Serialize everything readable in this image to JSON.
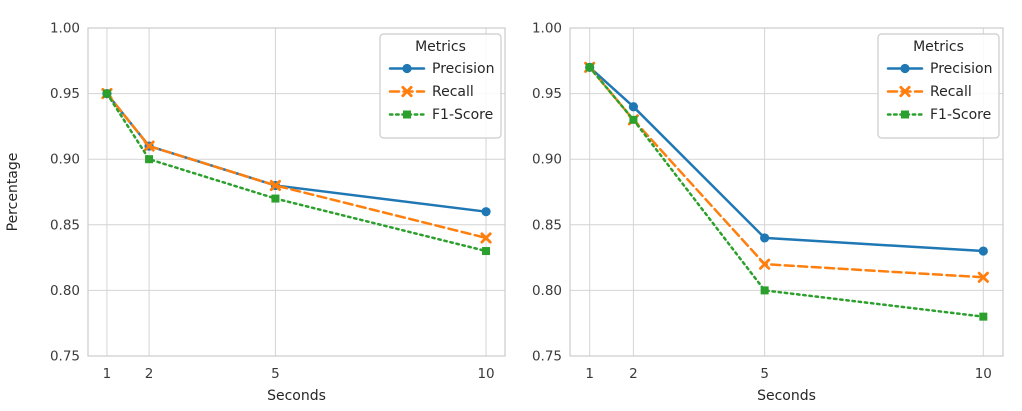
{
  "page": {
    "background": "#ffffff",
    "grid_color": "#d4d4d4",
    "spine_color": "#cccccc",
    "tick_text_color": "#3b3b3b",
    "label_text_color": "#262626"
  },
  "chart_data": [
    {
      "type": "line",
      "title": "",
      "xlabel": "Seconds",
      "ylabel": "Percentage",
      "x": [
        1,
        2,
        5,
        10
      ],
      "xticks": [
        1,
        2,
        5,
        10
      ],
      "xtick_labels": [
        "1",
        "2",
        "5",
        "10"
      ],
      "yticks": [
        0.75,
        0.8,
        0.85,
        0.9,
        0.95,
        1.0
      ],
      "ytick_labels": [
        "0.75",
        "0.80",
        "0.85",
        "0.90",
        "0.95",
        "1.00"
      ],
      "xlim": [
        0.55,
        10.45
      ],
      "ylim": [
        0.75,
        1.0
      ],
      "grid": true,
      "legend_title": "Metrics",
      "legend_position": "upper right",
      "series": [
        {
          "name": "Precision",
          "values": [
            0.95,
            0.91,
            0.88,
            0.86
          ],
          "color": "#1f77b4",
          "line": "solid",
          "marker": "circle"
        },
        {
          "name": "Recall",
          "values": [
            0.95,
            0.91,
            0.88,
            0.84
          ],
          "color": "#ff7f0e",
          "line": "dashed",
          "marker": "x"
        },
        {
          "name": "F1-Score",
          "values": [
            0.95,
            0.9,
            0.87,
            0.83
          ],
          "color": "#2ca02c",
          "line": "dotted",
          "marker": "square"
        }
      ]
    },
    {
      "type": "line",
      "title": "",
      "xlabel": "Seconds",
      "ylabel": "",
      "x": [
        1,
        2,
        5,
        10
      ],
      "xticks": [
        1,
        2,
        5,
        10
      ],
      "xtick_labels": [
        "1",
        "2",
        "5",
        "10"
      ],
      "yticks": [
        0.75,
        0.8,
        0.85,
        0.9,
        0.95,
        1.0
      ],
      "ytick_labels": [
        "0.75",
        "0.80",
        "0.85",
        "0.90",
        "0.95",
        "1.00"
      ],
      "xlim": [
        0.55,
        10.45
      ],
      "ylim": [
        0.75,
        1.0
      ],
      "grid": true,
      "legend_title": "Metrics",
      "legend_position": "upper right",
      "series": [
        {
          "name": "Precision",
          "values": [
            0.97,
            0.94,
            0.84,
            0.83
          ],
          "color": "#1f77b4",
          "line": "solid",
          "marker": "circle"
        },
        {
          "name": "Recall",
          "values": [
            0.97,
            0.93,
            0.82,
            0.81
          ],
          "color": "#ff7f0e",
          "line": "dashed",
          "marker": "x"
        },
        {
          "name": "F1-Score",
          "values": [
            0.97,
            0.93,
            0.8,
            0.78
          ],
          "color": "#2ca02c",
          "line": "dotted",
          "marker": "square"
        }
      ]
    }
  ]
}
